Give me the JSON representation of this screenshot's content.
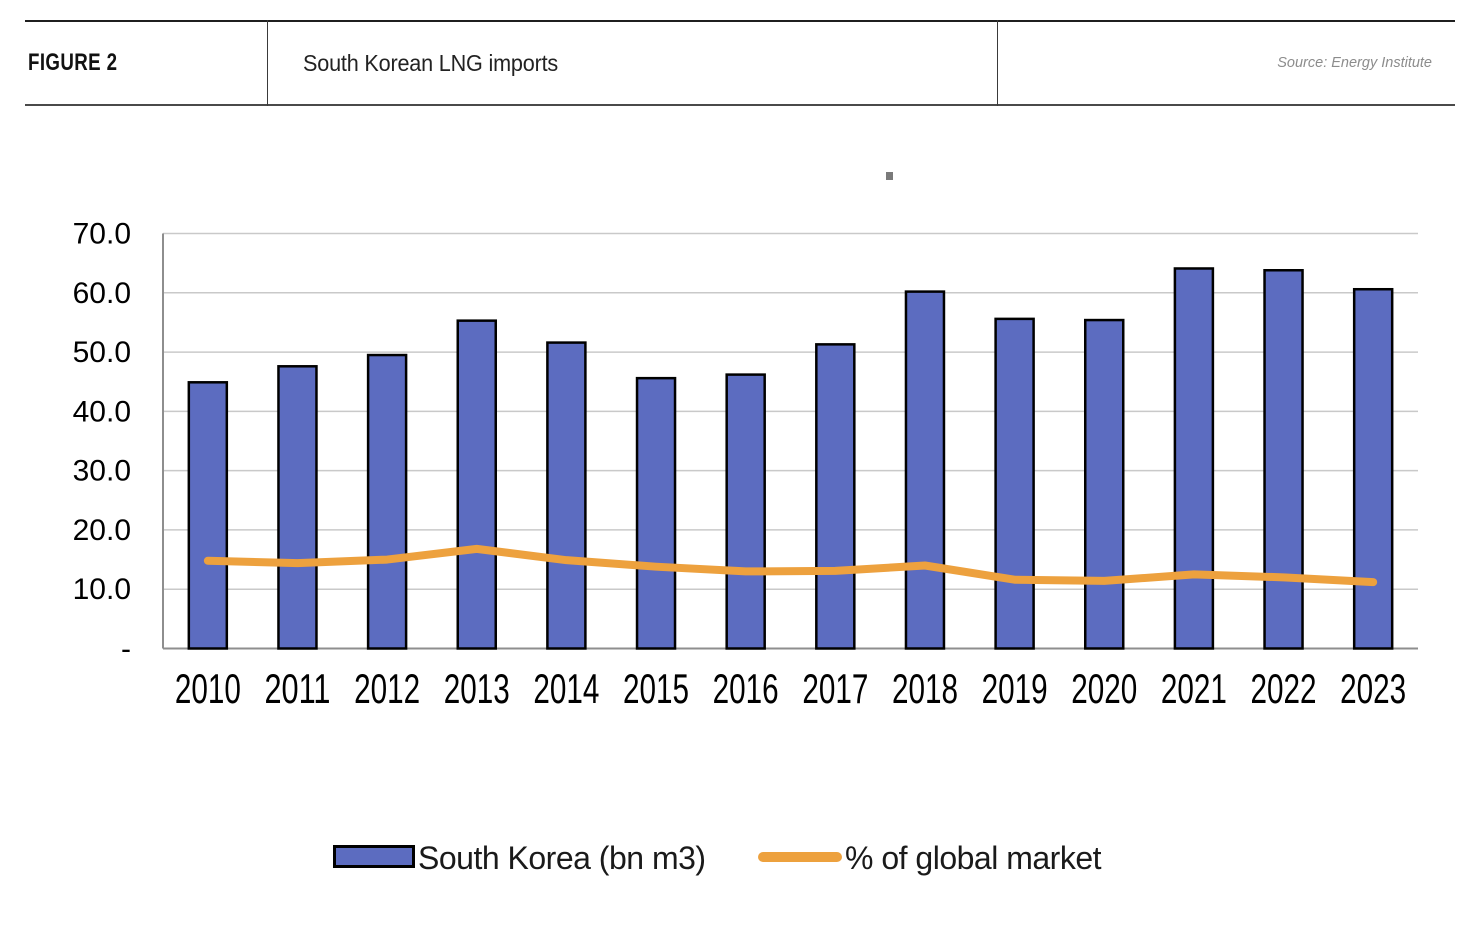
{
  "header": {
    "figure_label": "FIGURE 2",
    "title": "South Korean LNG imports",
    "source": "Source: Energy Institute"
  },
  "chart_data": {
    "type": "bar",
    "title": "",
    "xlabel": "",
    "ylabel": "",
    "categories": [
      "2010",
      "2011",
      "2012",
      "2013",
      "2014",
      "2015",
      "2016",
      "2017",
      "2018",
      "2019",
      "2020",
      "2021",
      "2022",
      "2023"
    ],
    "series": [
      {
        "name": "South Korea (bn m3)",
        "type": "bar",
        "color": "#5C6CC0",
        "values": [
          44.9,
          47.6,
          49.5,
          55.3,
          51.6,
          45.6,
          46.2,
          51.3,
          60.2,
          55.6,
          55.4,
          64.1,
          63.8,
          60.6
        ]
      },
      {
        "name": "% of global market",
        "type": "line",
        "color": "#EDA13E",
        "values": [
          14.8,
          14.4,
          15.0,
          16.8,
          14.9,
          13.8,
          13.0,
          13.1,
          14.0,
          11.6,
          11.4,
          12.5,
          12.0,
          11.2
        ]
      }
    ],
    "ylim": [
      0,
      70
    ],
    "y_ticks": [
      {
        "label": "70.0",
        "value": 70
      },
      {
        "label": "60.0",
        "value": 60
      },
      {
        "label": "50.0",
        "value": 50
      },
      {
        "label": "40.0",
        "value": 40
      },
      {
        "label": "30.0",
        "value": 30
      },
      {
        "label": "20.0",
        "value": 20
      },
      {
        "label": "10.0",
        "value": 10
      },
      {
        "label": "-",
        "value": 0
      }
    ],
    "grid": true,
    "legend_position": "bottom"
  },
  "colors": {
    "bar_fill": "#5C6CC0",
    "bar_outline": "#000000",
    "line": "#EDA13E",
    "gridline": "#C9C9C9",
    "axis": "#8E8E8E",
    "source_text": "#8C8C8C",
    "artifact": "#7A7A7A"
  }
}
